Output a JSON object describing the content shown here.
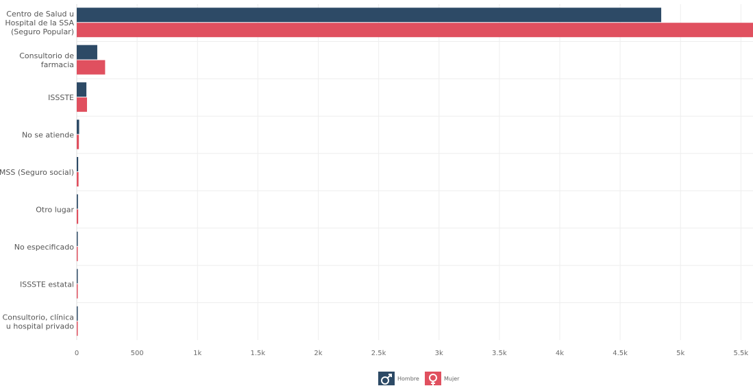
{
  "chart_data": {
    "type": "bar",
    "orientation": "horizontal",
    "categories": [
      [
        "Centro de Salud u",
        "Hospital de la SSA",
        "(Seguro Popular)"
      ],
      [
        "Consultorio de",
        "farmacia"
      ],
      [
        "ISSSTE"
      ],
      [
        "No se atiende"
      ],
      [
        "IMSS (Seguro social)"
      ],
      [
        "Otro lugar"
      ],
      [
        "No especificado"
      ],
      [
        "ISSSTE estatal"
      ],
      [
        "Consultorio, clínica",
        "u hospital privado"
      ]
    ],
    "series": [
      {
        "name": "Hombre",
        "color": "#2d4a66",
        "values": [
          4840,
          170,
          80,
          20,
          12,
          10,
          3,
          2,
          1
        ]
      },
      {
        "name": "Mujer",
        "color": "#e0505f",
        "values": [
          5600,
          235,
          85,
          18,
          15,
          12,
          6,
          4,
          2
        ]
      }
    ],
    "xticks": [
      {
        "value": 0,
        "label": "0"
      },
      {
        "value": 500,
        "label": "500"
      },
      {
        "value": 1000,
        "label": "1k"
      },
      {
        "value": 1500,
        "label": "1.5k"
      },
      {
        "value": 2000,
        "label": "2k"
      },
      {
        "value": 2500,
        "label": "2.5k"
      },
      {
        "value": 3000,
        "label": "3k"
      },
      {
        "value": 3500,
        "label": "3.5k"
      },
      {
        "value": 4000,
        "label": "4k"
      },
      {
        "value": 4500,
        "label": "4.5k"
      },
      {
        "value": 5000,
        "label": "5k"
      },
      {
        "value": 5500,
        "label": "5.5k"
      }
    ],
    "xlim": [
      0,
      5600
    ],
    "grid": true,
    "legend_position": "bottom-center",
    "legend": [
      {
        "label": "Hombre",
        "icon": "male-icon",
        "color": "#2d4a66"
      },
      {
        "label": "Mujer",
        "icon": "female-icon",
        "color": "#e0505f"
      }
    ]
  }
}
